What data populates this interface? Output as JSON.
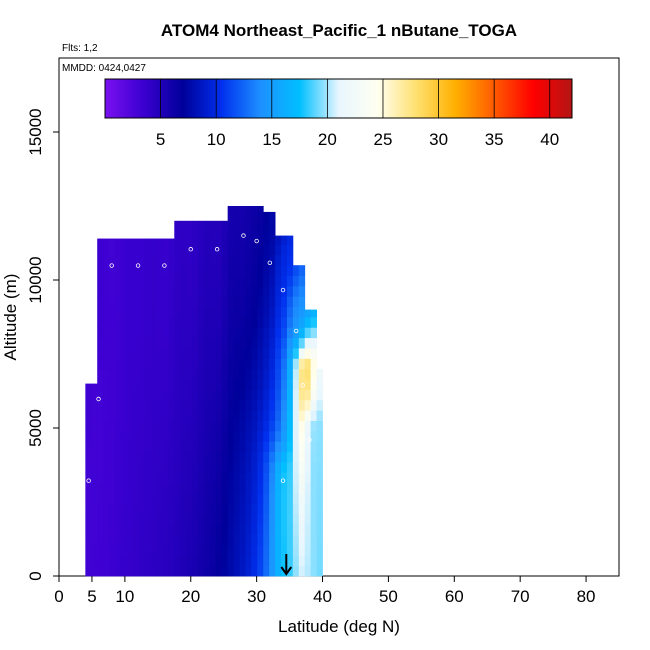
{
  "chart_data": {
    "type": "heatmap",
    "title": "ATOM4 Northeast_Pacific_1 nButane_TOGA",
    "flights_label": "Flts: 1,2",
    "date_label": "MMDD: 0424,0427",
    "xlabel": "Latitude (deg N)",
    "ylabel": "Altitude (m)",
    "xlim": [
      0,
      85
    ],
    "ylim": [
      0,
      17500
    ],
    "x_ticks": [
      0,
      5,
      10,
      20,
      30,
      40,
      50,
      60,
      70,
      80
    ],
    "y_ticks": [
      0,
      5000,
      10000,
      15000
    ],
    "colorbar": {
      "min": 0,
      "max": 42,
      "ticks": [
        5,
        10,
        15,
        20,
        25,
        30,
        35,
        40
      ],
      "colors": [
        "#7a10f0",
        "#3a00d0",
        "#00009a",
        "#0030ee",
        "#1e90ff",
        "#00bfff",
        "#e8f6ff",
        "#fffff0",
        "#ffe070",
        "#ffb000",
        "#ff5a00",
        "#ff0000",
        "#b41414"
      ]
    },
    "profile_marker": {
      "latitude": 34.5,
      "symbol": "down-arrow"
    },
    "observations": [
      {
        "lat": 4.5,
        "alt_max": 3500,
        "nbutane": 3
      },
      {
        "lat": 6,
        "alt_max": 6500,
        "nbutane": 3
      },
      {
        "lat": 8,
        "alt_max": 11400,
        "nbutane": 3
      },
      {
        "lat": 12,
        "alt_max": 11400,
        "nbutane": 3.5
      },
      {
        "lat": 16,
        "alt_max": 11400,
        "nbutane": 3.5
      },
      {
        "lat": 20,
        "alt_max": 12000,
        "nbutane": 4
      },
      {
        "lat": 24,
        "alt_max": 12000,
        "nbutane": 4.5
      },
      {
        "lat": 28,
        "alt_max": 12500,
        "nbutane": 5.5
      },
      {
        "lat": 30,
        "alt_max": 12300,
        "nbutane": 6
      },
      {
        "lat": 32,
        "alt_max": 11500,
        "nbutane": 7
      },
      {
        "lat": 34,
        "alt_max": 10500,
        "nbutane": 10
      },
      {
        "lat": 36,
        "alt_max": 9000,
        "nbutane": 14
      },
      {
        "lat": 37,
        "alt_max": 7000,
        "nbutane": 38
      },
      {
        "lat": 38,
        "alt_max": 5000,
        "nbutane": 16
      },
      {
        "lat": 34,
        "alt_max": 3500,
        "nbutane": 20
      }
    ]
  }
}
